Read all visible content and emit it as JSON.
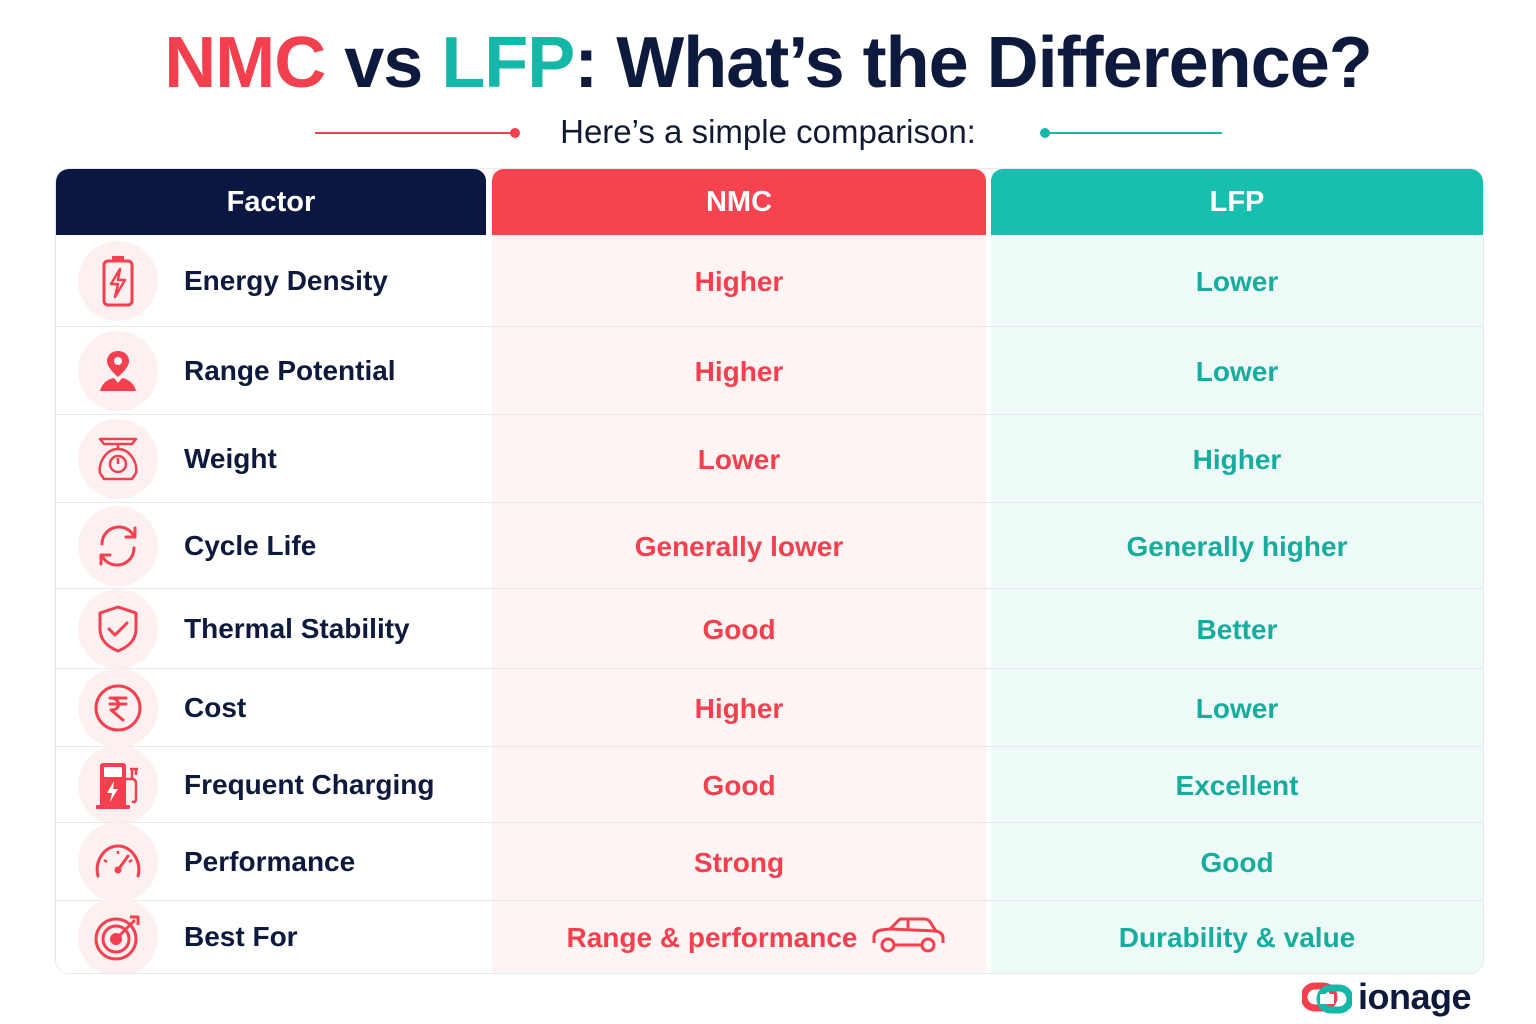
{
  "title": {
    "part_nmc": "NMC",
    "part_vs": " vs ",
    "part_lfp": "LFP",
    "part_rest": ": What’s the Difference?"
  },
  "subtitle": "Here’s a simple comparison:",
  "headers": {
    "factor": "Factor",
    "nmc": "NMC",
    "lfp": "LFP"
  },
  "rows": [
    {
      "icon": "battery-icon",
      "factor": "Energy Density",
      "nmc": "Higher",
      "lfp": "Lower"
    },
    {
      "icon": "location-pin-person-icon",
      "factor": "Range Potential",
      "nmc": "Higher",
      "lfp": "Lower"
    },
    {
      "icon": "weighing-scale-icon",
      "factor": "Weight",
      "nmc": "Lower",
      "lfp": "Higher"
    },
    {
      "icon": "cycle-arrows-icon",
      "factor": "Cycle Life",
      "nmc": "Generally lower",
      "lfp": "Generally higher"
    },
    {
      "icon": "shield-check-icon",
      "factor": "Thermal Stability",
      "nmc": "Good",
      "lfp": "Better"
    },
    {
      "icon": "rupee-icon",
      "factor": "Cost",
      "nmc": "Higher",
      "lfp": "Lower"
    },
    {
      "icon": "charging-station-icon",
      "factor": "Frequent Charging",
      "nmc": "Good",
      "lfp": "Excellent"
    },
    {
      "icon": "speedometer-icon",
      "factor": "Performance",
      "nmc": "Strong",
      "lfp": "Good"
    },
    {
      "icon": "target-icon",
      "factor": "Best For",
      "nmc": "Range & performance",
      "lfp": "Durability & value"
    }
  ],
  "brand": {
    "name": "ionage"
  },
  "colors": {
    "nmc": "#f2404f",
    "lfp": "#15b8a8",
    "navy": "#0a1740"
  }
}
